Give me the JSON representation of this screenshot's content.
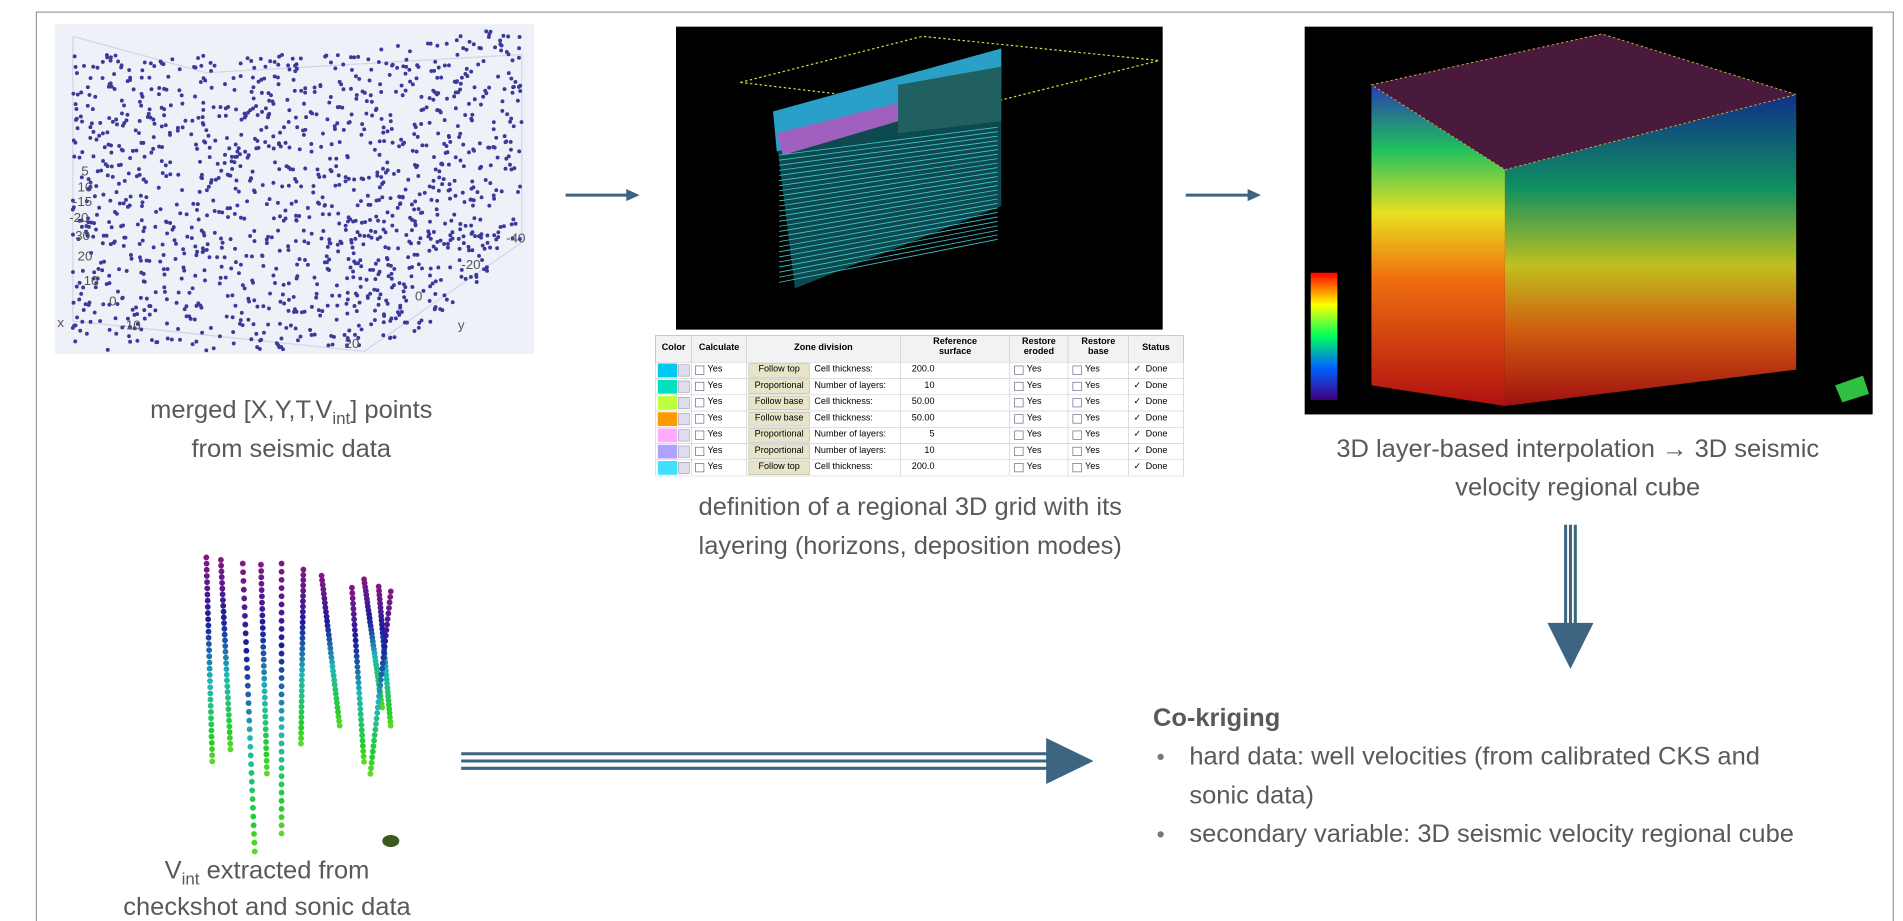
{
  "scatter_panel": {
    "tick_labels": [
      "5",
      "10",
      "-15",
      "-20",
      "30",
      "20",
      "10",
      "0",
      "-10",
      "x",
      "y",
      "-40",
      "-20",
      "0",
      "20"
    ],
    "caption": {
      "text": "merged  [X,Y,T,V",
      "subscript": "int",
      "suffix": "] points",
      "line2": "from seismic data"
    }
  },
  "grid_panel": {
    "table": {
      "headers": [
        [
          "Color"
        ],
        [
          "Calculate"
        ],
        [
          "Zone division"
        ],
        [
          "Reference",
          "surface"
        ],
        [
          "Restore",
          "eroded"
        ],
        [
          "Restore",
          "base"
        ],
        [
          "Status"
        ]
      ],
      "rows": [
        [
          "Yes",
          "Follow top",
          "Cell thickness:",
          "200.0",
          "Yes",
          "Yes",
          "Done"
        ],
        [
          "Yes",
          "Proportional",
          "Number of layers:",
          "10",
          "Yes",
          "Yes",
          "Done"
        ],
        [
          "Yes",
          "Follow base",
          "Cell thickness:",
          "50.00",
          "Yes",
          "Yes",
          "Done"
        ],
        [
          "Yes",
          "Follow base",
          "Cell thickness:",
          "50.00",
          "Yes",
          "Yes",
          "Done"
        ],
        [
          "Yes",
          "Proportional",
          "Number of layers:",
          "5",
          "Yes",
          "Yes",
          "Done"
        ],
        [
          "Yes",
          "Proportional",
          "Number of layers:",
          "10",
          "Yes",
          "Yes",
          "Done"
        ],
        [
          "Yes",
          "Follow top",
          "Cell thickness:",
          "200.0",
          "Yes",
          "Yes",
          "Done"
        ]
      ]
    },
    "caption": {
      "line1": "definition of a regional 3D grid with its",
      "line2": "layering (horizons, deposition modes)"
    }
  },
  "cube_panel": {
    "caption": {
      "line1": "3D layer-based interpolation → 3D seismic",
      "line2": "velocity regional cube"
    }
  },
  "well_panel": {
    "caption": {
      "text": "V",
      "subscript": "int",
      "suffix": " extracted from",
      "line2": "checkshot and sonic data"
    }
  },
  "cokriging": {
    "title": "Co-kriging",
    "bullets": [
      [
        "hard data: well velocities (from calibrated CKS and",
        "sonic data)"
      ],
      [
        "secondary variable: 3D seismic velocity regional cube"
      ]
    ]
  }
}
